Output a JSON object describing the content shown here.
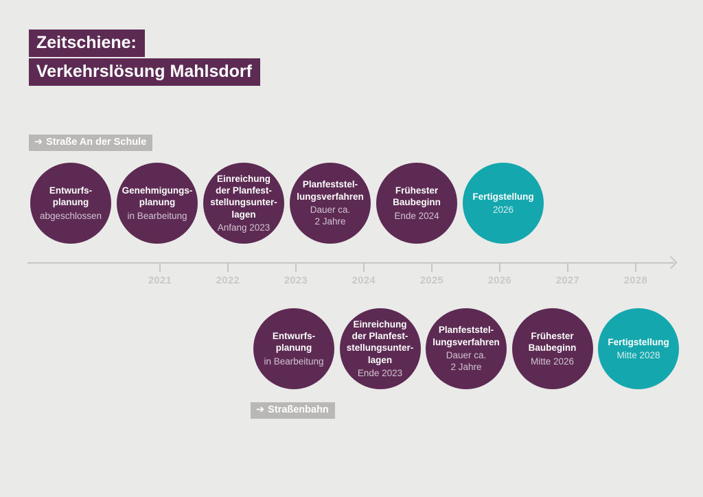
{
  "title": {
    "line1": "Zeitschiene:",
    "line2": "Verkehrslösung Mahlsdorf"
  },
  "colors": {
    "background": "#eaeae8",
    "purple": "#5c2a53",
    "teal": "#14a7ae",
    "label_bg": "#b9b8b7",
    "axis": "#c6c6c5",
    "year_text": "#c9c8c7",
    "title_bg": "#5c2a53"
  },
  "axis": {
    "years": [
      "2021",
      "2022",
      "2023",
      "2024",
      "2025",
      "2026",
      "2027",
      "2028"
    ]
  },
  "arrow_icon": "➔",
  "tracks": [
    {
      "id": "strasse-an-der-schule",
      "label": {
        "text": "Straße An der Schule"
      },
      "milestones": [
        {
          "title_lines": [
            "Entwurfs-",
            "planung"
          ],
          "subtitle_lines": [
            "abgeschlossen"
          ],
          "color": "purple"
        },
        {
          "title_lines": [
            "Genehmigungs-",
            "planung"
          ],
          "subtitle_lines": [
            "in Bearbeitung"
          ],
          "color": "purple"
        },
        {
          "title_lines": [
            "Einreichung",
            "der Planfest-",
            "stellungsunter-",
            "lagen"
          ],
          "subtitle_lines": [
            "Anfang 2023"
          ],
          "color": "purple"
        },
        {
          "title_lines": [
            "Planfeststel-",
            "lungsverfahren"
          ],
          "subtitle_lines": [
            "Dauer ca.",
            "2 Jahre"
          ],
          "color": "purple"
        },
        {
          "title_lines": [
            "Frühester",
            "Baubeginn"
          ],
          "subtitle_lines": [
            "Ende 2024"
          ],
          "color": "purple"
        },
        {
          "title_lines": [
            "Fertigstellung"
          ],
          "subtitle_lines": [
            "2026"
          ],
          "color": "teal"
        }
      ]
    },
    {
      "id": "strassenbahn",
      "label": {
        "text": "Straßenbahn"
      },
      "milestones": [
        {
          "title_lines": [
            "Entwurfs-",
            "planung"
          ],
          "subtitle_lines": [
            "in Bearbeitung"
          ],
          "color": "purple"
        },
        {
          "title_lines": [
            "Einreichung",
            "der Planfest-",
            "stellungsunter-",
            "lagen"
          ],
          "subtitle_lines": [
            "Ende 2023"
          ],
          "color": "purple"
        },
        {
          "title_lines": [
            "Planfeststel-",
            "lungsverfahren"
          ],
          "subtitle_lines": [
            "Dauer ca.",
            "2 Jahre"
          ],
          "color": "purple"
        },
        {
          "title_lines": [
            "Frühester",
            "Baubeginn"
          ],
          "subtitle_lines": [
            "Mitte 2026"
          ],
          "color": "purple"
        },
        {
          "title_lines": [
            "Fertigstellung"
          ],
          "subtitle_lines": [
            "Mitte 2028"
          ],
          "color": "teal"
        }
      ]
    }
  ]
}
